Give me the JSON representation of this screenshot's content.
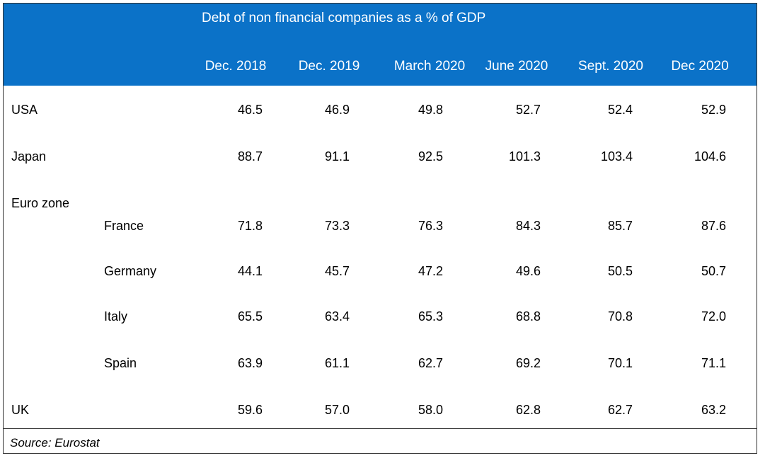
{
  "chart_data": {
    "type": "table",
    "title": "Debt of non financial companies as a % of GDP",
    "columns": [
      "Dec. 2018",
      "Dec. 2019",
      "March 2020",
      "June 2020",
      "Sept. 2020",
      "Dec 2020"
    ],
    "rows": [
      {
        "label": "USA",
        "level": 0,
        "values": [
          "46.5",
          "46.9",
          "49.8",
          "52.7",
          "52.4",
          "52.9"
        ]
      },
      {
        "label": "Japan",
        "level": 0,
        "values": [
          "88.7",
          "91.1",
          "92.5",
          "101.3",
          "103.4",
          "104.6"
        ]
      },
      {
        "label": "Euro zone",
        "level": 0,
        "values": []
      },
      {
        "label": "France",
        "level": 1,
        "values": [
          "71.8",
          "73.3",
          "76.3",
          "84.3",
          "85.7",
          "87.6"
        ]
      },
      {
        "label": "Germany",
        "level": 1,
        "values": [
          "44.1",
          "45.7",
          "47.2",
          "49.6",
          "50.5",
          "50.7"
        ]
      },
      {
        "label": "Italy",
        "level": 1,
        "values": [
          "65.5",
          "63.4",
          "65.3",
          "68.8",
          "70.8",
          "72.0"
        ]
      },
      {
        "label": "Spain",
        "level": 1,
        "values": [
          "63.9",
          "61.1",
          "62.7",
          "69.2",
          "70.1",
          "71.1"
        ]
      },
      {
        "label": "UK",
        "level": 0,
        "values": [
          "59.6",
          "57.0",
          "58.0",
          "62.8",
          "62.7",
          "63.2"
        ]
      }
    ],
    "source": "Source: Eurostat"
  },
  "colors": {
    "header_background": "#0b72c8",
    "header_text": "#ffffff",
    "body_text": "#000000",
    "border": "#333333"
  }
}
